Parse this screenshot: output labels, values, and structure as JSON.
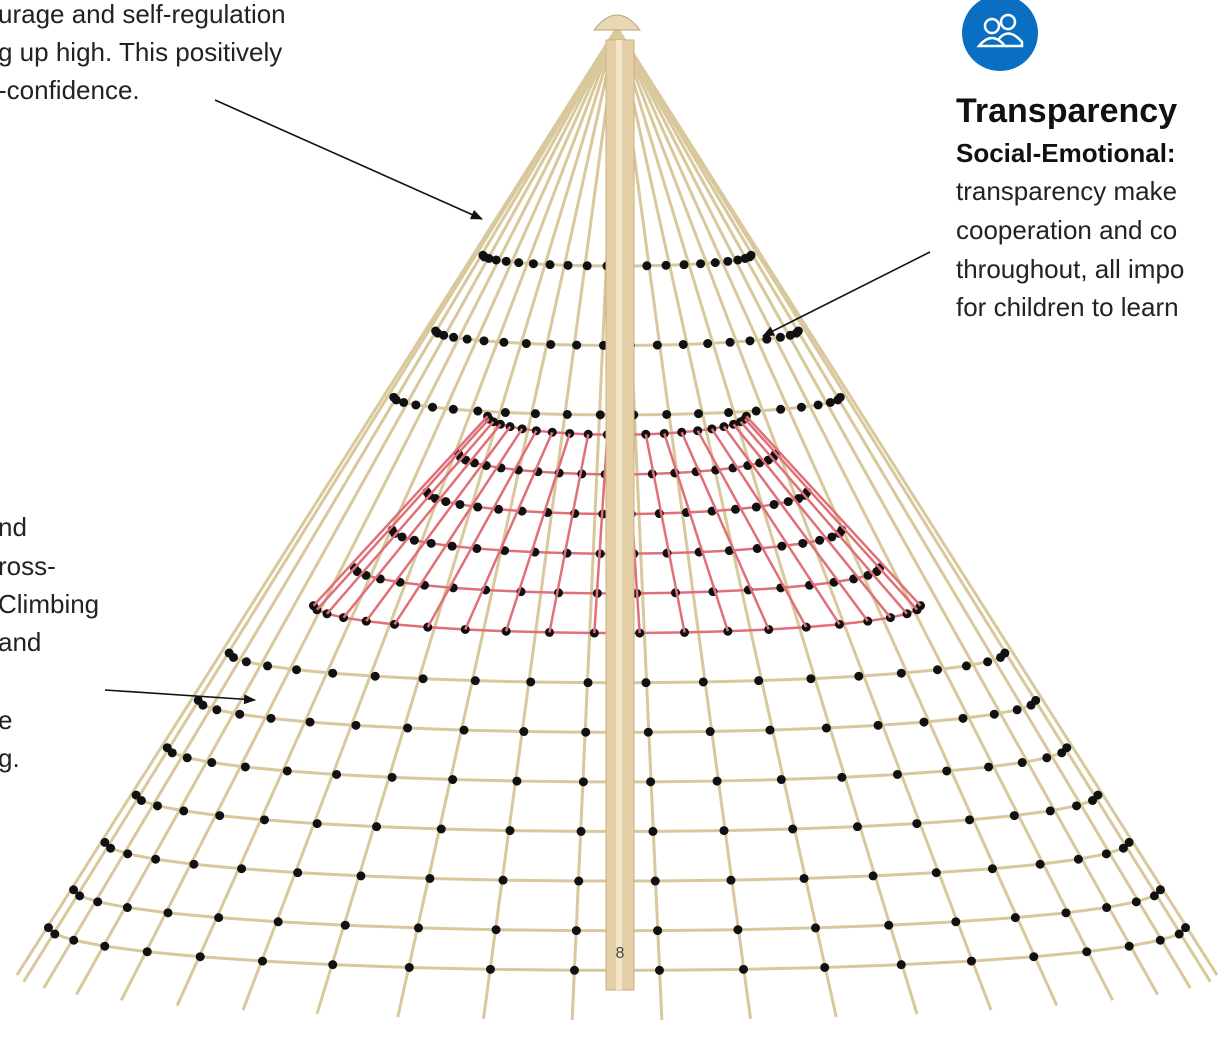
{
  "top_left": {
    "lines": [
      "urage and self-regulation",
      "g up high. This positively",
      "-confidence."
    ]
  },
  "right": {
    "title": "Transparency",
    "subtitle": "Social-Emotional:",
    "lines": [
      "transparency make",
      "cooperation and co",
      "throughout, all impo",
      "for children to learn"
    ]
  },
  "left_middle": {
    "lines": [
      "nd",
      "ross-",
      "Climbing",
      "and",
      "e",
      "g."
    ]
  },
  "pole_label": "8"
}
